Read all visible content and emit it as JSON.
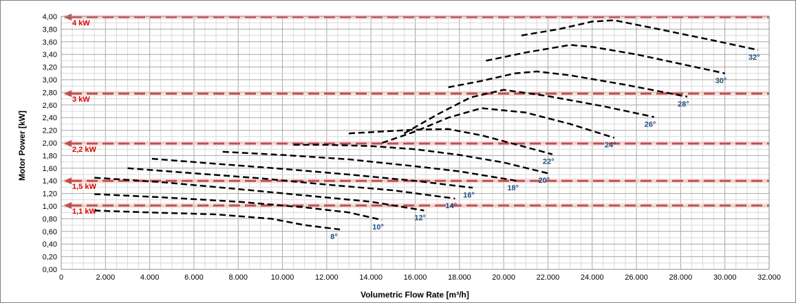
{
  "chart_data": {
    "type": "line",
    "title": "",
    "xlabel": "Volumetric Flow Rate  [m³/h]",
    "ylabel": "Motor Power [kW]",
    "xlim": [
      0,
      32000
    ],
    "ylim": [
      0,
      4.0
    ],
    "x_ticks": [
      "0",
      "2.000",
      "4.000",
      "6.000",
      "8.000",
      "10.000",
      "12.000",
      "14.000",
      "16.000",
      "18.000",
      "20.000",
      "22.000",
      "24.000",
      "26.000",
      "28.000",
      "30.000",
      "32.000"
    ],
    "y_ticks": [
      "0,00",
      "0,20",
      "0,40",
      "0,60",
      "0,80",
      "1,00",
      "1,20",
      "1,40",
      "1,60",
      "1,80",
      "2,00",
      "2,20",
      "2,40",
      "2,60",
      "2,80",
      "3,00",
      "3,20",
      "3,40",
      "3,60",
      "3,80",
      "4,00"
    ],
    "grid": true,
    "motor_lines": [
      {
        "label": "4 kW",
        "y": 3.99,
        "color": "#c0504d"
      },
      {
        "label": "3 kW",
        "y": 2.78,
        "color": "#c0504d"
      },
      {
        "label": "2,2 kW",
        "y": 1.99,
        "color": "#c0504d"
      },
      {
        "label": "1,5 kW",
        "y": 1.4,
        "color": "#c0504d"
      },
      {
        "label": "1,1 kW",
        "y": 1.01,
        "color": "#c0504d"
      }
    ],
    "series": [
      {
        "name": "8°",
        "x": [
          1500,
          4000,
          7000,
          9500,
          11000,
          12600
        ],
        "y": [
          0.93,
          0.9,
          0.87,
          0.8,
          0.7,
          0.63
        ]
      },
      {
        "name": "10°",
        "x": [
          1500,
          4500,
          8000,
          11000,
          13000,
          14500
        ],
        "y": [
          1.19,
          1.14,
          1.07,
          0.98,
          0.9,
          0.78
        ]
      },
      {
        "name": "12°",
        "x": [
          1500,
          4500,
          8000,
          11000,
          14000,
          16400
        ],
        "y": [
          1.45,
          1.38,
          1.27,
          1.17,
          1.07,
          0.93
        ]
      },
      {
        "name": "14°",
        "x": [
          3000,
          6000,
          9000,
          12000,
          15000,
          17800
        ],
        "y": [
          1.6,
          1.52,
          1.44,
          1.34,
          1.25,
          1.12
        ]
      },
      {
        "name": "16°",
        "x": [
          4100,
          7000,
          10000,
          13000,
          16000,
          18600
        ],
        "y": [
          1.75,
          1.67,
          1.59,
          1.5,
          1.4,
          1.29
        ]
      },
      {
        "name": "18°",
        "x": [
          7300,
          10000,
          13000,
          16000,
          18000,
          20600
        ],
        "y": [
          1.86,
          1.81,
          1.74,
          1.63,
          1.55,
          1.4
        ]
      },
      {
        "name": "20°",
        "x": [
          10500,
          12000,
          14000,
          16000,
          18000,
          20000,
          22000
        ],
        "y": [
          1.97,
          1.97,
          1.95,
          1.9,
          1.81,
          1.69,
          1.52
        ]
      },
      {
        "name": "22°",
        "x": [
          13000,
          14500,
          16000,
          17500,
          19000,
          20500,
          22200
        ],
        "y": [
          2.15,
          2.18,
          2.21,
          2.22,
          2.12,
          1.98,
          1.82
        ]
      },
      {
        "name": "24°",
        "x": [
          14500,
          16000,
          17500,
          19000,
          21000,
          23000,
          25000
        ],
        "y": [
          2.0,
          2.18,
          2.4,
          2.55,
          2.48,
          2.3,
          2.08
        ]
      },
      {
        "name": "26°",
        "x": [
          15500,
          17000,
          18500,
          20000,
          22000,
          24500,
          26800
        ],
        "y": [
          2.15,
          2.45,
          2.72,
          2.84,
          2.74,
          2.58,
          2.41
        ]
      },
      {
        "name": "28°",
        "x": [
          17500,
          19000,
          20500,
          21500,
          23000,
          25500,
          28300
        ],
        "y": [
          2.88,
          2.98,
          3.1,
          3.13,
          3.07,
          2.92,
          2.73
        ]
      },
      {
        "name": "30°",
        "x": [
          19200,
          21000,
          23000,
          24000,
          26000,
          28000,
          30000
        ],
        "y": [
          3.3,
          3.43,
          3.55,
          3.52,
          3.4,
          3.25,
          3.1
        ]
      },
      {
        "name": "32°",
        "x": [
          20800,
          22500,
          24000,
          25000,
          27000,
          29500,
          31500
        ],
        "y": [
          3.7,
          3.8,
          3.92,
          3.94,
          3.8,
          3.62,
          3.47
        ]
      }
    ]
  }
}
